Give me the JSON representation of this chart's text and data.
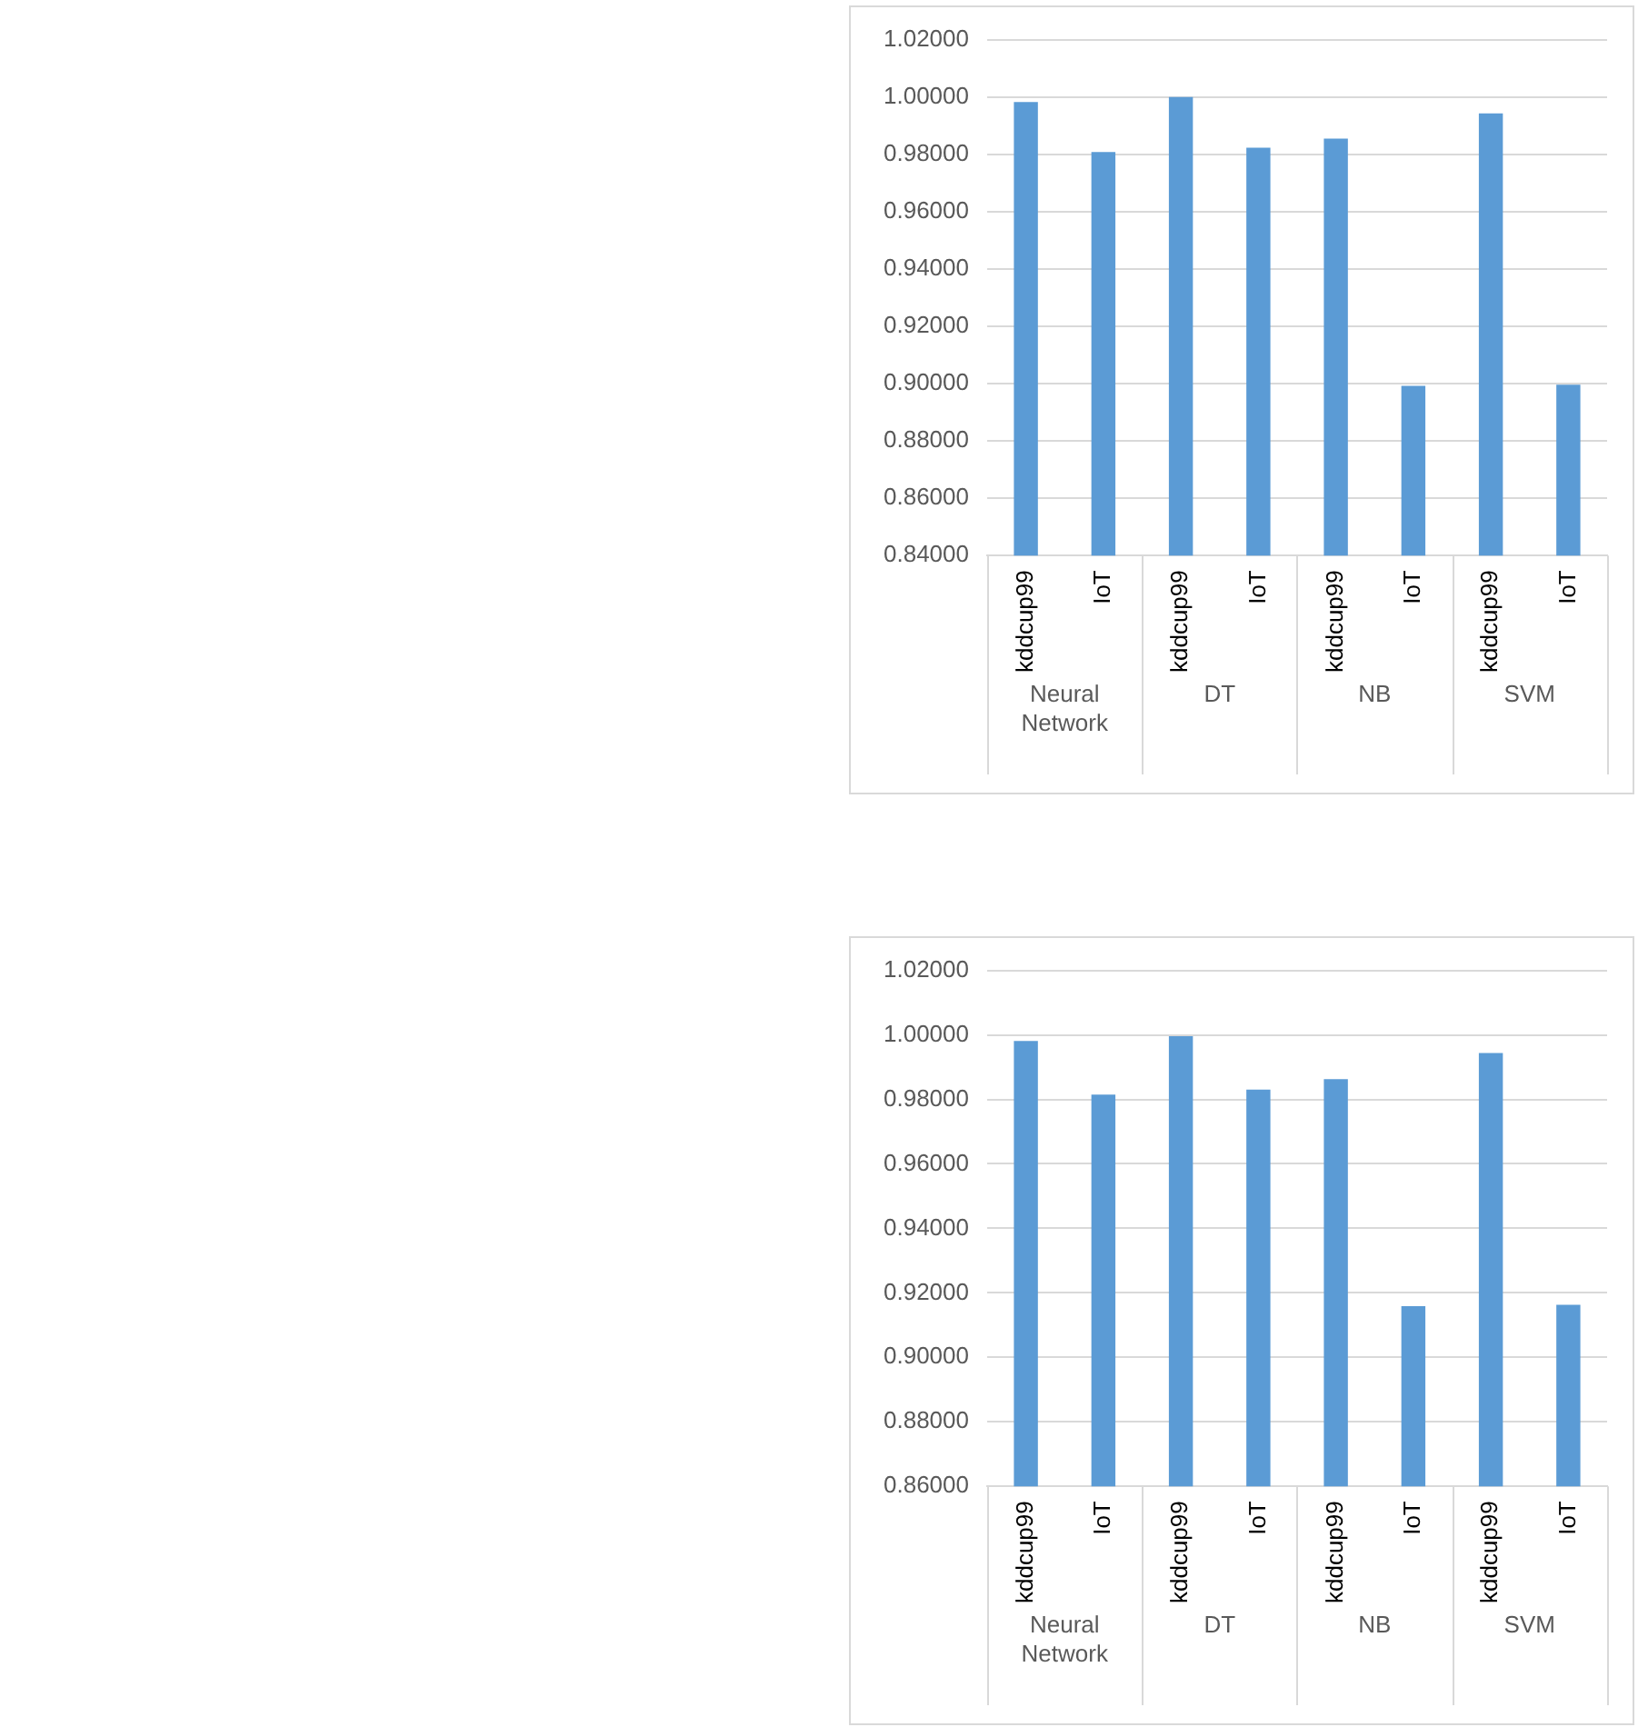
{
  "chart_data": [
    {
      "type": "bar",
      "categories": [
        "kddcup99",
        "IoT",
        "kddcup99",
        "IoT",
        "kddcup99",
        "IoT",
        "kddcup99",
        "IoT"
      ],
      "values": [
        0.9982,
        0.9808,
        1.0,
        0.9823,
        0.9855,
        0.8992,
        0.9943,
        0.8996
      ],
      "color": "#5b9bd5",
      "ylim": [
        0.84,
        1.02
      ],
      "yticks": [
        {
          "value": 0.84,
          "label": "0.84000"
        },
        {
          "value": 0.86,
          "label": "0.86000"
        },
        {
          "value": 0.88,
          "label": "0.88000"
        },
        {
          "value": 0.9,
          "label": "0.90000"
        },
        {
          "value": 0.92,
          "label": "0.92000"
        },
        {
          "value": 0.94,
          "label": "0.94000"
        },
        {
          "value": 0.96,
          "label": "0.96000"
        },
        {
          "value": 0.98,
          "label": "0.98000"
        },
        {
          "value": 1.0,
          "label": "1.00000"
        },
        {
          "value": 1.02,
          "label": "1.02000"
        }
      ],
      "annotations": [
        "Neural Network",
        "DT",
        "NB",
        "SVM"
      ],
      "grid": "y",
      "legend": false
    },
    {
      "type": "bar",
      "categories": [
        "kddcup99",
        "IoT",
        "kddcup99",
        "IoT",
        "kddcup99",
        "IoT",
        "kddcup99",
        "IoT"
      ],
      "values": [
        0.9981,
        0.9815,
        0.9996,
        0.983,
        0.9863,
        0.9159,
        0.9944,
        0.9163
      ],
      "color": "#5b9bd5",
      "ylim": [
        0.86,
        1.02
      ],
      "yticks": [
        {
          "value": 0.86,
          "label": "0.86000"
        },
        {
          "value": 0.88,
          "label": "0.88000"
        },
        {
          "value": 0.9,
          "label": "0.90000"
        },
        {
          "value": 0.92,
          "label": "0.92000"
        },
        {
          "value": 0.94,
          "label": "0.94000"
        },
        {
          "value": 0.96,
          "label": "0.96000"
        },
        {
          "value": 0.98,
          "label": "0.98000"
        },
        {
          "value": 1.0,
          "label": "1.00000"
        },
        {
          "value": 1.02,
          "label": "1.02000"
        }
      ],
      "annotations": [
        "Neural Network",
        "DT",
        "NB",
        "SVM"
      ],
      "grid": "y",
      "legend": false
    }
  ]
}
